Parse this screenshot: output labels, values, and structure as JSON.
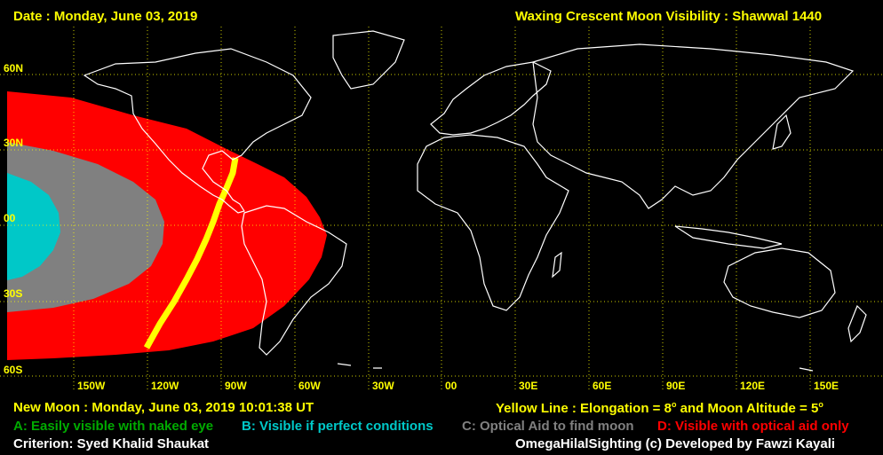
{
  "header": {
    "date": "Date : Monday, June 03, 2019",
    "title": "Waxing Crescent Moon Visibility : Shawwal 1440"
  },
  "lat_labels": [
    "60N",
    "30N",
    "00",
    "30S",
    "60S"
  ],
  "lon_labels": [
    "150W",
    "120W",
    "90W",
    "60W",
    "30W",
    "00",
    "30E",
    "60E",
    "90E",
    "120E",
    "150E"
  ],
  "footer": {
    "new_moon": "New Moon : Monday, June 03, 2019  10:01:38  UT",
    "yellow_line": "Yellow Line : Elongation = 8",
    "deg1": "o",
    "yellow_line_mid": "  and Moon Altitude = 5",
    "deg2": "o",
    "legend_a": "A: Easily visible with naked eye",
    "legend_b": "B: Visible if perfect conditions",
    "legend_c": "C: Optical Aid to find moon",
    "legend_d": "D: Visible with optical aid only",
    "criterion": "Criterion: Syed Khalid Shaukat",
    "credit": "OmegaHilalSighting  (c)  Developed by Fawzi Kayali"
  },
  "colors": {
    "zone_a": "#00aa00",
    "zone_b": "#00c8c8",
    "zone_c": "#808080",
    "zone_d": "#ff0000",
    "yellow_line": "#ffff00",
    "grid": "#ffff00",
    "coast": "#ffffff"
  }
}
